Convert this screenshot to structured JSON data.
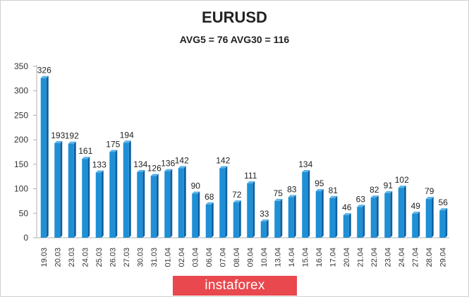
{
  "chart_data": {
    "type": "bar",
    "title": "EURUSD",
    "subtitle": "AVG5 = 76 AVG30 = 116",
    "categories": [
      "19.03",
      "20.03",
      "23.03",
      "24.03",
      "25.03",
      "26.03",
      "27.03",
      "30.03",
      "31.03",
      "01.04",
      "02.04",
      "03.04",
      "06.04",
      "07.04",
      "08.04",
      "09.04",
      "10.04",
      "13.04",
      "14.04",
      "15.04",
      "16.04",
      "17.04",
      "20.04",
      "21.04",
      "22.04",
      "23.04",
      "24.04",
      "27.04",
      "28.04",
      "29.04"
    ],
    "values": [
      326,
      193,
      192,
      161,
      133,
      175,
      194,
      134,
      126,
      136,
      142,
      90,
      68,
      142,
      72,
      111,
      33,
      75,
      83,
      134,
      95,
      81,
      46,
      63,
      82,
      91,
      102,
      49,
      79,
      56
    ],
    "yticks": [
      0,
      50,
      100,
      150,
      200,
      250,
      300,
      350
    ],
    "ylim": [
      0,
      350
    ],
    "grid": false,
    "legend": "none",
    "colors": {
      "bar_front": "#1f8fd6",
      "bar_side": "#0f5f9e",
      "bar_top": "#5bb4ea",
      "axis": "#b0b0b0"
    }
  },
  "watermark": "instaforex"
}
